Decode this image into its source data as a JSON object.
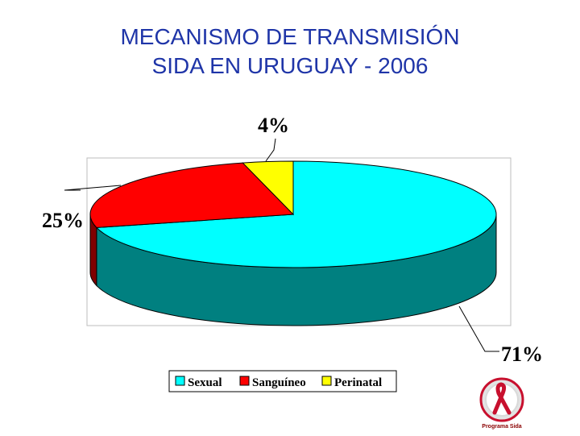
{
  "title_line1": "MECANISMO DE TRANSMISIÓN",
  "title_line2": "SIDA EN URUGUAY - 2006",
  "chart_data": {
    "type": "pie",
    "title": "MECANISMO DE TRANSMISIÓN SIDA EN URUGUAY - 2006",
    "categories": [
      "Sexual",
      "Sanguíneo",
      "Perinatal"
    ],
    "values": [
      71,
      25,
      4
    ],
    "labels": [
      "71%",
      "25%",
      "4%"
    ],
    "colors": {
      "Sexual": {
        "top": "#00ffff",
        "side": "#008080"
      },
      "Sanguíneo": {
        "top": "#ff0000",
        "side": "#800000"
      },
      "Perinatal": {
        "top": "#ffff00",
        "side": "#808000"
      }
    },
    "legend_position": "bottom",
    "style": "3d"
  },
  "logo": {
    "caption": "Programa Sida",
    "icon": "red-ribbon-icon"
  }
}
